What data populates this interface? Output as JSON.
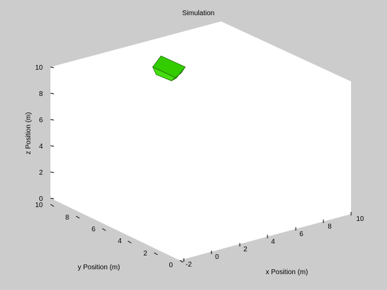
{
  "figure": {
    "title": "Simulation",
    "background": "#cccccc",
    "axes_background": "#ffffff"
  },
  "chart_data": {
    "type": "scatter",
    "title": "Simulation",
    "xlabel": "x Position (m)",
    "ylabel": "y Position (m)",
    "zlabel": "z Position (m)",
    "xlim": [
      -2,
      10
    ],
    "ylim": [
      0,
      10
    ],
    "zlim": [
      0,
      10
    ],
    "x_ticks": [
      "-2",
      "0",
      "2",
      "4",
      "6",
      "8",
      "10"
    ],
    "y_ticks": [
      "0",
      "2",
      "4",
      "6",
      "8",
      "10"
    ],
    "z_ticks": [
      "0",
      "2",
      "4",
      "6",
      "8",
      "10"
    ],
    "grid": false,
    "objects": [
      {
        "shape": "cube",
        "color": "#33cc00",
        "edge_color": "#1f6b00"
      }
    ]
  }
}
